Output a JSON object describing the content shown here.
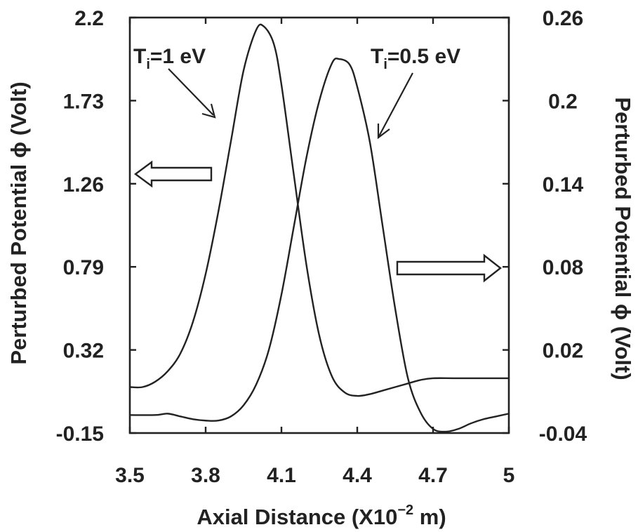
{
  "chart_data": {
    "type": "line",
    "x": {
      "label_main": "Axial Distance (X10",
      "label_exp": "−2",
      "label_unit": " m)",
      "range": [
        3.5,
        5.0
      ],
      "ticks": [
        "3.5",
        "3.8",
        "4.1",
        "4.4",
        "4.7",
        "5"
      ]
    },
    "y_left": {
      "label": "Perturbed  Potential ϕ (Volt)",
      "range": [
        -0.15,
        2.2
      ],
      "ticks": [
        "-0.15",
        "0.32",
        "0.79",
        "1.26",
        "1.73",
        "2.2"
      ]
    },
    "y_right": {
      "label": "Perturbed  Potential ϕ (Volt)",
      "range": [
        -0.04,
        0.26
      ],
      "ticks": [
        "-0.04",
        "0.02",
        "0.08",
        "0.14",
        "0.2",
        "0.26"
      ]
    },
    "series": [
      {
        "name": "Ti=1 eV",
        "axis": "left",
        "points": [
          [
            3.5,
            0.11
          ],
          [
            3.55,
            0.11
          ],
          [
            3.6,
            0.14
          ],
          [
            3.65,
            0.2
          ],
          [
            3.7,
            0.3
          ],
          [
            3.75,
            0.48
          ],
          [
            3.8,
            0.75
          ],
          [
            3.85,
            1.1
          ],
          [
            3.9,
            1.5
          ],
          [
            3.95,
            1.9
          ],
          [
            4.0,
            2.13
          ],
          [
            4.03,
            2.15
          ],
          [
            4.07,
            2.05
          ],
          [
            4.1,
            1.82
          ],
          [
            4.15,
            1.3
          ],
          [
            4.2,
            0.79
          ],
          [
            4.25,
            0.4
          ],
          [
            4.3,
            0.17
          ],
          [
            4.35,
            0.08
          ],
          [
            4.4,
            0.06
          ],
          [
            4.45,
            0.07
          ],
          [
            4.5,
            0.09
          ],
          [
            4.55,
            0.11
          ],
          [
            4.6,
            0.13
          ],
          [
            4.65,
            0.15
          ],
          [
            4.7,
            0.16
          ],
          [
            4.8,
            0.16
          ],
          [
            5.0,
            0.16
          ]
        ]
      },
      {
        "name": "Ti=0.5 eV",
        "axis": "right",
        "points": [
          [
            3.5,
            -0.027
          ],
          [
            3.6,
            -0.027
          ],
          [
            3.65,
            -0.026
          ],
          [
            3.7,
            -0.028
          ],
          [
            3.75,
            -0.03
          ],
          [
            3.8,
            -0.031
          ],
          [
            3.85,
            -0.031
          ],
          [
            3.9,
            -0.028
          ],
          [
            3.95,
            -0.02
          ],
          [
            4.0,
            -0.005
          ],
          [
            4.05,
            0.02
          ],
          [
            4.1,
            0.06
          ],
          [
            4.15,
            0.11
          ],
          [
            4.2,
            0.16
          ],
          [
            4.25,
            0.2
          ],
          [
            4.3,
            0.227
          ],
          [
            4.33,
            0.23
          ],
          [
            4.37,
            0.226
          ],
          [
            4.4,
            0.21
          ],
          [
            4.45,
            0.17
          ],
          [
            4.5,
            0.11
          ],
          [
            4.55,
            0.05
          ],
          [
            4.6,
            0.0
          ],
          [
            4.65,
            -0.025
          ],
          [
            4.7,
            -0.037
          ],
          [
            4.75,
            -0.039
          ],
          [
            4.8,
            -0.037
          ],
          [
            4.85,
            -0.033
          ],
          [
            4.9,
            -0.03
          ],
          [
            4.95,
            -0.028
          ],
          [
            5.0,
            -0.026
          ]
        ]
      }
    ],
    "annotations": [
      {
        "id": "ti1",
        "main": "T",
        "sub": "i",
        "rest": "=1 eV"
      },
      {
        "id": "ti05",
        "main": "T",
        "sub": "i",
        "rest": "=0.5 eV"
      }
    ]
  }
}
